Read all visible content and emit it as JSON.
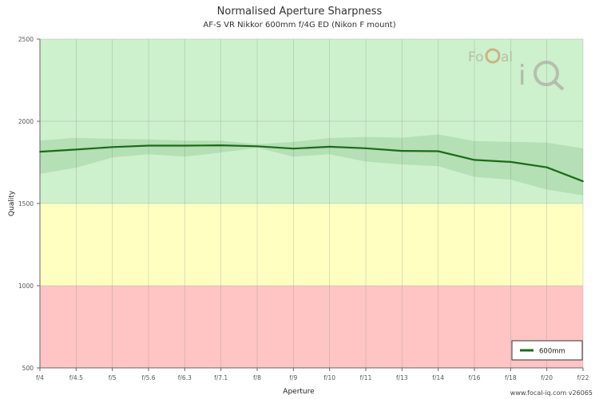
{
  "chart_data": {
    "type": "line",
    "title": "Normalised Aperture Sharpness",
    "subtitle": "AF-S VR Nikkor 600mm f/4G ED (Nikon F mount)",
    "xlabel": "Aperture",
    "ylabel": "Quality",
    "categories": [
      "f/4",
      "f/4.5",
      "f/5",
      "f/5.6",
      "f/6.3",
      "f/7.1",
      "f/8",
      "f/9",
      "f/10",
      "f/11",
      "f/13",
      "f/14",
      "f/16",
      "f/18",
      "f/20",
      "f/22"
    ],
    "ylim": [
      500,
      2500
    ],
    "yticks": [
      500,
      1000,
      1500,
      2000,
      2500
    ],
    "bands": [
      {
        "from": 500,
        "to": 1000,
        "color": "#ffc4c4"
      },
      {
        "from": 1000,
        "to": 1500,
        "color": "#ffffc1"
      },
      {
        "from": 1500,
        "to": 2500,
        "color": "#cdf0cd"
      }
    ],
    "series": [
      {
        "name": "600mm",
        "color": "#1a6b1a",
        "values": [
          1815,
          1828,
          1843,
          1852,
          1852,
          1854,
          1848,
          1834,
          1845,
          1836,
          1820,
          1818,
          1765,
          1753,
          1720,
          1635
        ],
        "upper": [
          1882,
          1900,
          1893,
          1890,
          1883,
          1882,
          1860,
          1875,
          1898,
          1905,
          1900,
          1920,
          1880,
          1875,
          1870,
          1835
        ],
        "lower": [
          1680,
          1718,
          1780,
          1800,
          1785,
          1810,
          1840,
          1785,
          1800,
          1755,
          1738,
          1727,
          1662,
          1645,
          1585,
          1550
        ]
      }
    ],
    "grid": true,
    "legend_position": "bottom-right"
  },
  "footer": "www.focal-iq.com  v26065",
  "logo": "FoCal iQ"
}
